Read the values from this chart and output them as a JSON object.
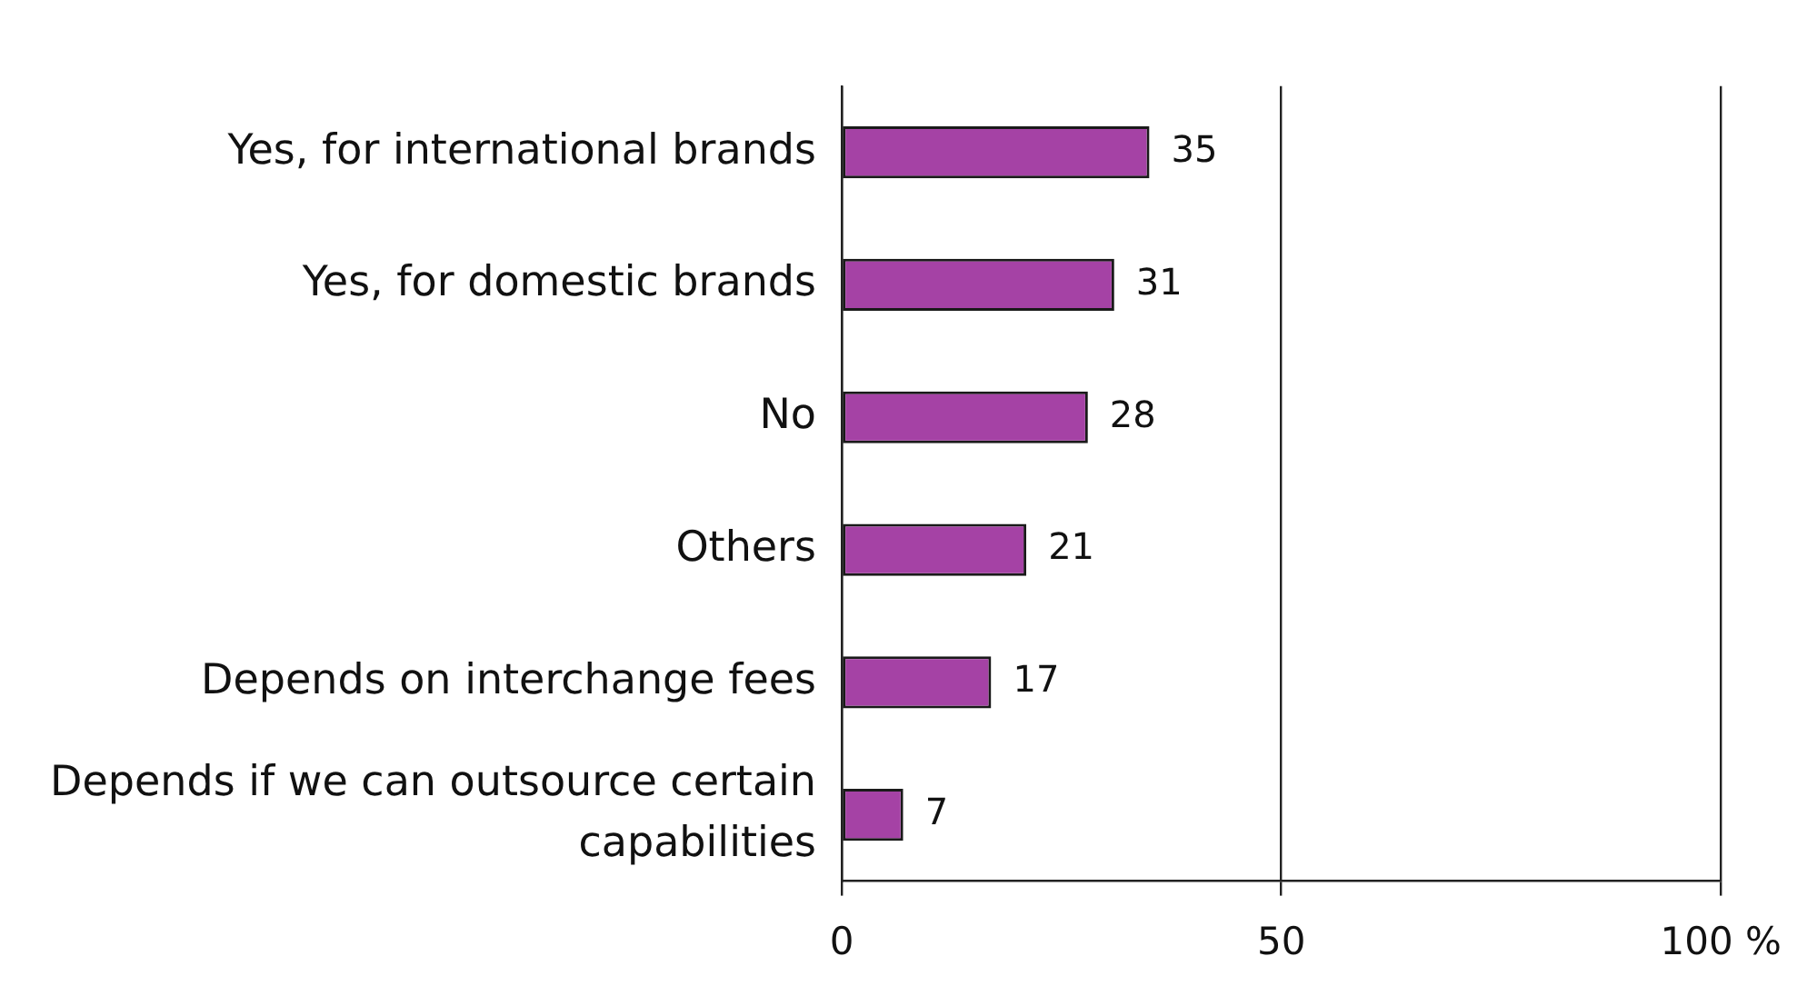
{
  "chart_data": {
    "type": "bar",
    "orientation": "horizontal",
    "categories": [
      "Yes, for international brands",
      "Yes, for domestic brands",
      "No",
      "Others",
      "Depends on interchange fees",
      "Depends if we can outsource certain capabilities"
    ],
    "values": [
      35,
      31,
      28,
      21,
      17,
      7
    ],
    "color": "#a542a5",
    "xlim": [
      0,
      100
    ],
    "xticks": [
      0,
      50,
      {
        "value": 100,
        "label": "100 %"
      }
    ],
    "grid": "x",
    "legend": false,
    "data_labels": true
  }
}
